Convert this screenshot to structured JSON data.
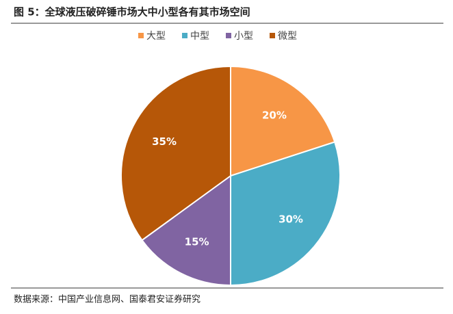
{
  "chart_data": {
    "type": "pie",
    "title": "图 5：全球液压破碎锤市场大中小型各有其市场空间",
    "source": "数据来源：中国产业信息网、国泰君安证券研究",
    "categories": [
      "大型",
      "中型",
      "小型",
      "微型"
    ],
    "values": [
      20,
      30,
      15,
      35
    ],
    "value_labels": [
      "20%",
      "30%",
      "15%",
      "35%"
    ],
    "colors": [
      "#F79646",
      "#4BACC6",
      "#8064A2",
      "#B65708"
    ],
    "legend": "top"
  }
}
